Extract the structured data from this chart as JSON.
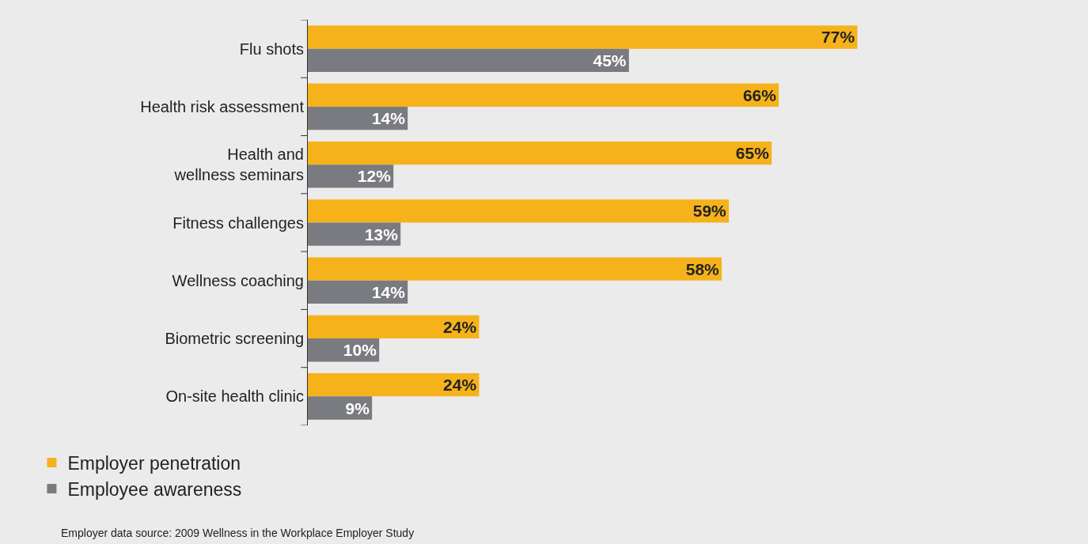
{
  "chart_data": {
    "type": "bar",
    "orientation": "horizontal",
    "categories": [
      "Flu shots",
      "Health risk assessment",
      "Health and wellness seminars",
      "Fitness challenges",
      "Wellness coaching",
      "Biometric screening",
      "On-site health clinic"
    ],
    "series": [
      {
        "name": "Employer penetration",
        "color": "#f5b21b",
        "values": [
          77,
          66,
          65,
          59,
          58,
          24,
          24
        ],
        "value_labels": [
          "77%",
          "66%",
          "65%",
          "59%",
          "58%",
          "24%",
          "24%"
        ]
      },
      {
        "name": "Employee awareness",
        "color": "#797b80",
        "values": [
          45,
          14,
          12,
          13,
          14,
          10,
          9
        ],
        "value_labels": [
          "45%",
          "14%",
          "12%",
          "13%",
          "14%",
          "10%",
          "9%"
        ]
      }
    ],
    "tick_labels": "y",
    "legend": "bottom left",
    "annotations": [
      "Employer data source: 2009 Wellness in the Workplace Employer Study"
    ]
  }
}
